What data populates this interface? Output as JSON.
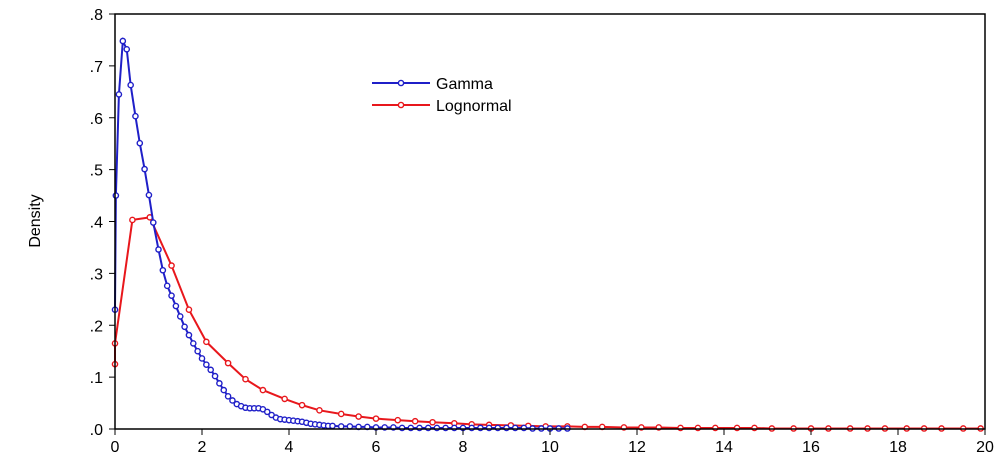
{
  "chart_data": {
    "type": "line",
    "title": "",
    "xlabel": "",
    "ylabel": "Density",
    "xlim": [
      0,
      20
    ],
    "ylim": [
      0,
      0.8
    ],
    "x_ticks": [
      0,
      2,
      4,
      6,
      8,
      10,
      12,
      14,
      16,
      18,
      20
    ],
    "x_tick_labels": [
      "0",
      "2",
      "4",
      "6",
      "8",
      "10",
      "12",
      "14",
      "16",
      "18",
      "20"
    ],
    "y_ticks": [
      0,
      0.1,
      0.2,
      0.3,
      0.4,
      0.5,
      0.6,
      0.7,
      0.8
    ],
    "y_tick_labels": [
      ".0",
      ".1",
      ".2",
      ".3",
      ".4",
      ".5",
      ".6",
      ".7",
      ".8"
    ],
    "grid": false,
    "legend_position": "top-center",
    "series": [
      {
        "name": "Gamma",
        "color": "#1f1fc8",
        "marker": "circle",
        "points": [
          [
            0.0,
            0.23
          ],
          [
            0.02,
            0.45
          ],
          [
            0.09,
            0.645
          ],
          [
            0.18,
            0.748
          ],
          [
            0.27,
            0.732
          ],
          [
            0.36,
            0.663
          ],
          [
            0.47,
            0.603
          ],
          [
            0.57,
            0.551
          ],
          [
            0.68,
            0.501
          ],
          [
            0.78,
            0.451
          ],
          [
            0.88,
            0.398
          ],
          [
            1.0,
            0.346
          ],
          [
            1.1,
            0.306
          ],
          [
            1.2,
            0.276
          ],
          [
            1.3,
            0.257
          ],
          [
            1.4,
            0.237
          ],
          [
            1.5,
            0.217
          ],
          [
            1.6,
            0.197
          ],
          [
            1.7,
            0.181
          ],
          [
            1.8,
            0.165
          ],
          [
            1.9,
            0.15
          ],
          [
            2.0,
            0.136
          ],
          [
            2.1,
            0.124
          ],
          [
            2.2,
            0.114
          ],
          [
            2.3,
            0.102
          ],
          [
            2.4,
            0.088
          ],
          [
            2.5,
            0.075
          ],
          [
            2.6,
            0.063
          ],
          [
            2.7,
            0.055
          ],
          [
            2.8,
            0.048
          ],
          [
            2.9,
            0.044
          ],
          [
            3.0,
            0.041
          ],
          [
            3.1,
            0.04
          ],
          [
            3.2,
            0.04
          ],
          [
            3.3,
            0.04
          ],
          [
            3.4,
            0.038
          ],
          [
            3.5,
            0.033
          ],
          [
            3.6,
            0.027
          ],
          [
            3.7,
            0.022
          ],
          [
            3.8,
            0.019
          ],
          [
            3.9,
            0.018
          ],
          [
            4.0,
            0.017
          ],
          [
            4.1,
            0.016
          ],
          [
            4.2,
            0.015
          ],
          [
            4.3,
            0.014
          ],
          [
            4.4,
            0.012
          ],
          [
            4.5,
            0.01
          ],
          [
            4.6,
            0.009
          ],
          [
            4.7,
            0.008
          ],
          [
            4.8,
            0.007
          ],
          [
            4.9,
            0.006
          ],
          [
            5.0,
            0.006
          ],
          [
            5.2,
            0.005
          ],
          [
            5.4,
            0.005
          ],
          [
            5.6,
            0.004
          ],
          [
            5.8,
            0.004
          ],
          [
            6.0,
            0.003
          ],
          [
            6.2,
            0.003
          ],
          [
            6.4,
            0.003
          ],
          [
            6.6,
            0.002
          ],
          [
            6.8,
            0.002
          ],
          [
            7.0,
            0.002
          ],
          [
            7.2,
            0.002
          ],
          [
            7.4,
            0.002
          ],
          [
            7.6,
            0.002
          ],
          [
            7.8,
            0.002
          ],
          [
            8.0,
            0.002
          ],
          [
            8.2,
            0.002
          ],
          [
            8.4,
            0.002
          ],
          [
            8.6,
            0.002
          ],
          [
            8.8,
            0.002
          ],
          [
            9.0,
            0.002
          ],
          [
            9.2,
            0.002
          ],
          [
            9.4,
            0.002
          ],
          [
            9.6,
            0.001
          ],
          [
            9.8,
            0.001
          ],
          [
            10.0,
            0.001
          ],
          [
            10.2,
            0.001
          ],
          [
            10.4,
            0.001
          ]
        ]
      },
      {
        "name": "Lognormal",
        "color": "#e8171c",
        "marker": "circle",
        "points": [
          [
            0.0,
            0.125
          ],
          [
            0.0,
            0.165
          ],
          [
            0.4,
            0.403
          ],
          [
            0.8,
            0.408
          ],
          [
            1.3,
            0.315
          ],
          [
            1.7,
            0.23
          ],
          [
            2.1,
            0.168
          ],
          [
            2.6,
            0.127
          ],
          [
            3.0,
            0.096
          ],
          [
            3.4,
            0.075
          ],
          [
            3.9,
            0.058
          ],
          [
            4.3,
            0.046
          ],
          [
            4.7,
            0.036
          ],
          [
            5.2,
            0.029
          ],
          [
            5.6,
            0.024
          ],
          [
            6.0,
            0.02
          ],
          [
            6.5,
            0.017
          ],
          [
            6.9,
            0.015
          ],
          [
            7.3,
            0.013
          ],
          [
            7.8,
            0.011
          ],
          [
            8.2,
            0.009
          ],
          [
            8.6,
            0.008
          ],
          [
            9.1,
            0.007
          ],
          [
            9.5,
            0.006
          ],
          [
            9.9,
            0.005
          ],
          [
            10.4,
            0.005
          ],
          [
            10.8,
            0.004
          ],
          [
            11.2,
            0.004
          ],
          [
            11.7,
            0.003
          ],
          [
            12.1,
            0.003
          ],
          [
            12.5,
            0.003
          ],
          [
            13.0,
            0.002
          ],
          [
            13.4,
            0.002
          ],
          [
            13.8,
            0.002
          ],
          [
            14.3,
            0.002
          ],
          [
            14.7,
            0.002
          ],
          [
            15.1,
            0.001
          ],
          [
            15.6,
            0.001
          ],
          [
            16.0,
            0.001
          ],
          [
            16.4,
            0.001
          ],
          [
            16.9,
            0.001
          ],
          [
            17.3,
            0.001
          ],
          [
            17.7,
            0.001
          ],
          [
            18.2,
            0.001
          ],
          [
            18.6,
            0.001
          ],
          [
            19.0,
            0.001
          ],
          [
            19.5,
            0.001
          ],
          [
            19.9,
            0.001
          ]
        ]
      }
    ]
  }
}
